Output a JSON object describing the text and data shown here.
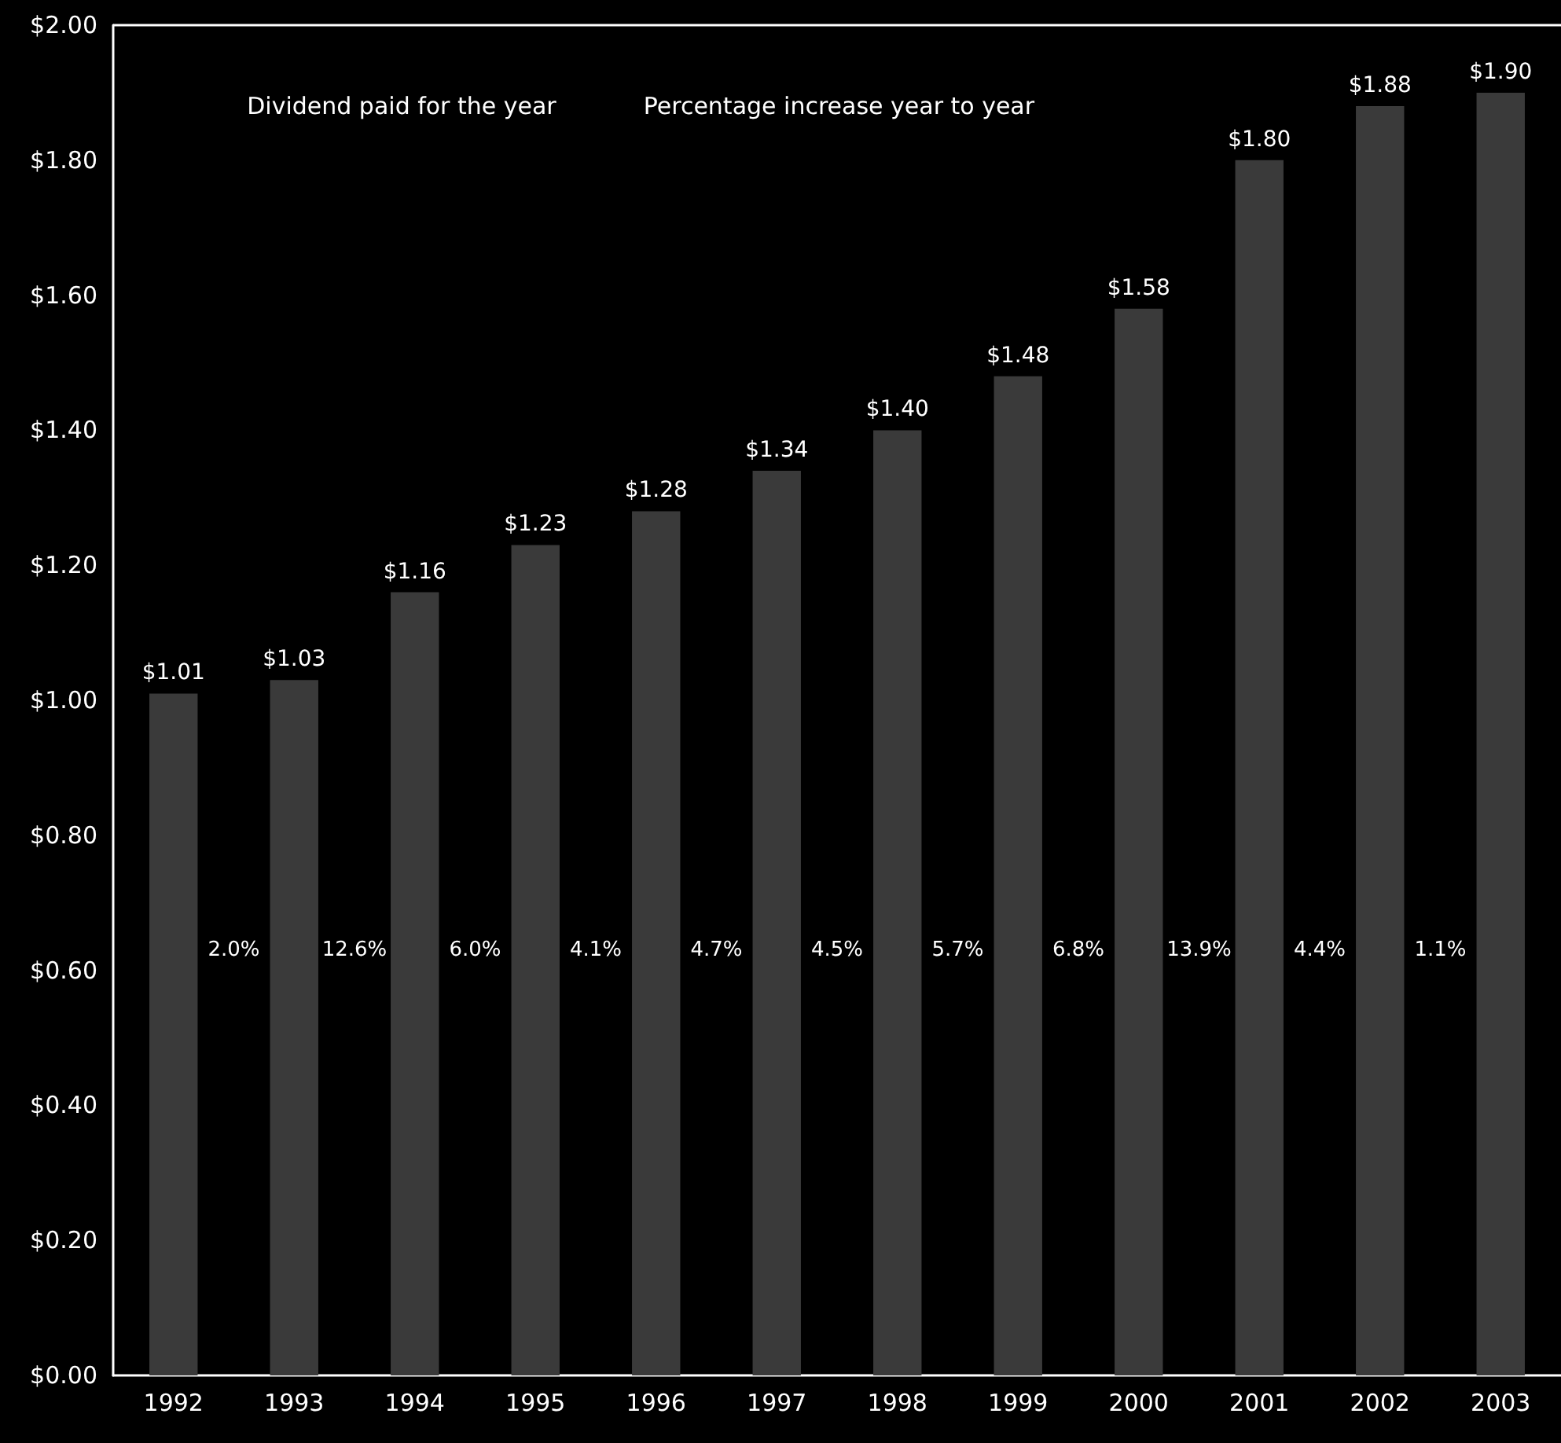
{
  "chart_data": {
    "type": "bar",
    "categories": [
      "1992",
      "1993",
      "1994",
      "1995",
      "1996",
      "1997",
      "1998",
      "1999",
      "2000",
      "2001",
      "2002",
      "2003"
    ],
    "series": [
      {
        "color": "#3a3a3a",
        "values": [
          1.01,
          1.03,
          1.16,
          1.23,
          1.28,
          1.34,
          1.4,
          1.48,
          1.58,
          1.8,
          1.88,
          1.9
        ],
        "value_labels": [
          "$1.01",
          "$1.03",
          "$1.16",
          "$1.23",
          "$1.28",
          "$1.34",
          "$1.40",
          "$1.48",
          "$1.58",
          "$1.80",
          "$1.88",
          "$1.90"
        ]
      }
    ],
    "annotations": [
      "Dividend paid for the year",
      "Percentage increase year to year",
      "2.0%",
      "12.6%",
      "6.0%",
      "4.1%",
      "4.7%",
      "4.5%",
      "5.7%",
      "6.8%",
      "13.9%",
      "4.4%",
      "1.1%"
    ],
    "ylim": [
      0,
      2
    ],
    "yticks": [
      {
        "value": 0,
        "label": "$0.00"
      },
      {
        "value": 0.2,
        "label": "$0.20"
      },
      {
        "value": 0.4,
        "label": "$0.40"
      },
      {
        "value": 0.6,
        "label": "$0.60"
      },
      {
        "value": 0.8,
        "label": "$0.80"
      },
      {
        "value": 1,
        "label": "$1.00"
      },
      {
        "value": 1.2,
        "label": "$1.20"
      },
      {
        "value": 1.4,
        "label": "$1.40"
      },
      {
        "value": 1.6,
        "label": "$1.60"
      },
      {
        "value": 1.8,
        "label": "$1.80"
      },
      {
        "value": 2,
        "label": "$2.00"
      }
    ],
    "grid": false
  }
}
